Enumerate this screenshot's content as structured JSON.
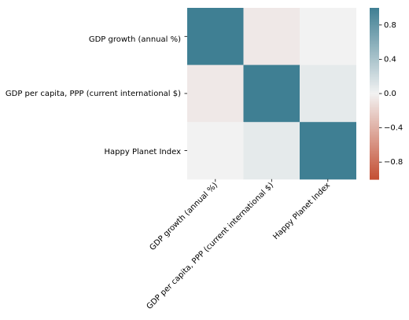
{
  "chart_data": {
    "type": "heatmap",
    "title": "",
    "xlabel": "",
    "ylabel": "",
    "categories": [
      "GDP growth (annual %)",
      "GDP per capita, PPP (current international $)",
      "Happy Planet Index"
    ],
    "matrix": [
      [
        1.0,
        -0.06,
        0.0
      ],
      [
        -0.06,
        1.0,
        0.07
      ],
      [
        0.0,
        0.07,
        1.0
      ]
    ],
    "colorbar": {
      "vmin": -1,
      "vmax": 1,
      "ticks": [
        0.8,
        0.4,
        0.0,
        -0.4,
        -0.8
      ],
      "tick_labels": [
        "0.8",
        "0.4",
        "0.0",
        "−0.4",
        "−0.8"
      ],
      "low_color": "#c44e33",
      "mid_color": "#f2f2f2",
      "high_color": "#3f7f93"
    },
    "grid": false,
    "legend": "colorbar-right"
  }
}
